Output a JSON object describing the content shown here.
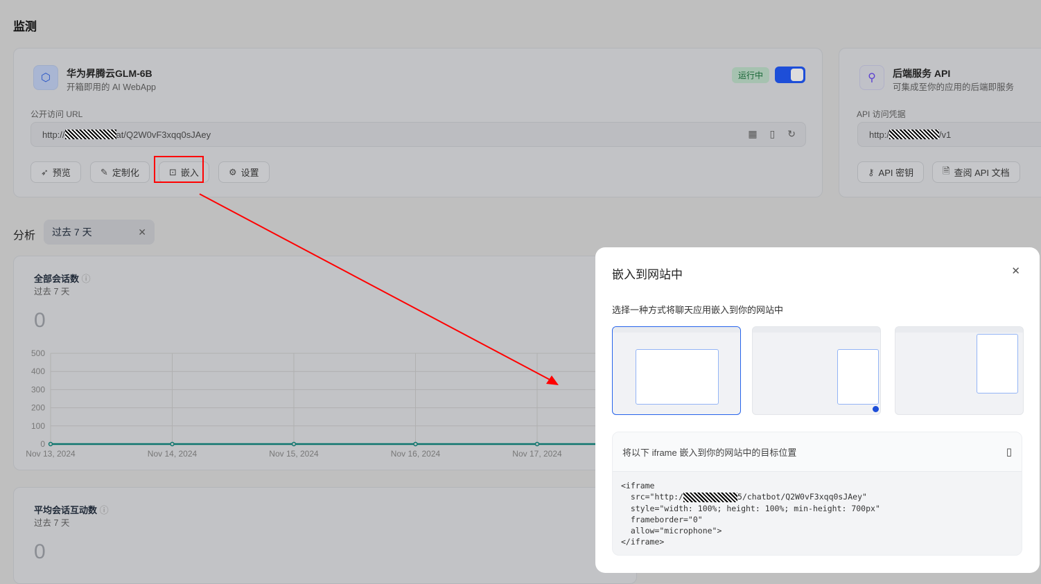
{
  "page": {
    "title": "监测"
  },
  "webapp": {
    "name": "华为昇腾云GLM-6B",
    "desc": "开箱即用的 AI WebApp",
    "status": "运行中",
    "enabled": true,
    "url_label": "公开访问 URL",
    "url_prefix": "http://",
    "url_suffix": "at/Q2W0vF3xqq0sJAey",
    "buttons": [
      {
        "label": "预览",
        "icon": "rocket-icon"
      },
      {
        "label": "定制化",
        "icon": "brush-icon"
      },
      {
        "label": "嵌入",
        "icon": "embed-icon"
      },
      {
        "label": "设置",
        "icon": "gear-icon"
      }
    ]
  },
  "api": {
    "name": "后端服务 API",
    "desc": "可集成至你的应用的后端即服务",
    "url_label": "API 访问凭据",
    "url_prefix": "http:/",
    "url_suffix": "/v1",
    "buttons": [
      {
        "label": "API 密钥",
        "icon": "key-icon"
      },
      {
        "label": "查阅 API 文档",
        "icon": "document-icon"
      }
    ]
  },
  "analysis": {
    "label": "分析",
    "period": "过去 7 天"
  },
  "charts": [
    {
      "title": "全部会话数",
      "period": "过去 7 天",
      "total": "0"
    },
    {
      "title": "平均会话互动数",
      "period": "过去 7 天",
      "total": "0"
    }
  ],
  "chart_data": {
    "type": "line",
    "categories": [
      "Nov 13, 2024",
      "Nov 14, 2024",
      "Nov 15, 2024",
      "Nov 16, 2024",
      "Nov 17, 2024"
    ],
    "values": [
      0,
      0,
      0,
      0,
      0
    ],
    "yticks": [
      "0",
      "100",
      "200",
      "300",
      "400",
      "500"
    ],
    "ylim": [
      0,
      500
    ],
    "grid": true,
    "color": "#0f766e"
  },
  "modal": {
    "title": "嵌入到网站中",
    "subtitle": "选择一种方式将聊天应用嵌入到你的网站中",
    "code_title": "将以下 iframe 嵌入到你的网站中的目标位置",
    "code": [
      "<iframe",
      "  src=\"http:/",
      "5/chatbot/Q2W0vF3xqq0sJAey\"",
      "  style=\"width: 100%; height: 100%; min-height: 700px\"",
      "  frameborder=\"0\"",
      "  allow=\"microphone\">",
      "</iframe>"
    ]
  },
  "colors": {
    "accent": "#2563eb",
    "annotation": "#ff0000"
  }
}
